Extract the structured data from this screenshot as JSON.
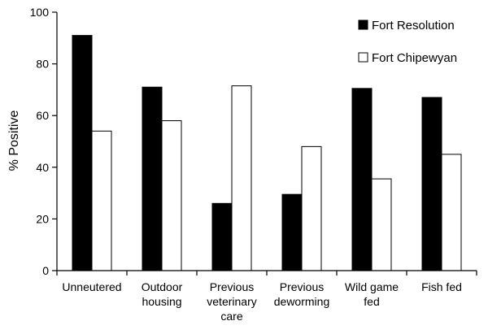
{
  "chart_data": {
    "type": "bar",
    "title": "",
    "xlabel": "",
    "ylabel": "% Positive",
    "ylim": [
      0,
      100
    ],
    "yticks": [
      0,
      20,
      40,
      60,
      80,
      100
    ],
    "grid": false,
    "legend_position": "top-right",
    "categories": [
      [
        "Unneutered"
      ],
      [
        "Outdoor",
        "housing"
      ],
      [
        "Previous",
        "veterinary",
        "care"
      ],
      [
        "Previous",
        "deworming"
      ],
      [
        "Wild game",
        "fed"
      ],
      [
        "Fish fed"
      ]
    ],
    "series": [
      {
        "name": "Fort Resolution",
        "color": "#000000",
        "values": [
          91,
          71,
          26,
          29.5,
          70.5,
          67
        ]
      },
      {
        "name": "Fort Chipewyan",
        "color": "#ffffff",
        "values": [
          54,
          58,
          71.5,
          48,
          35.5,
          45
        ]
      }
    ]
  }
}
